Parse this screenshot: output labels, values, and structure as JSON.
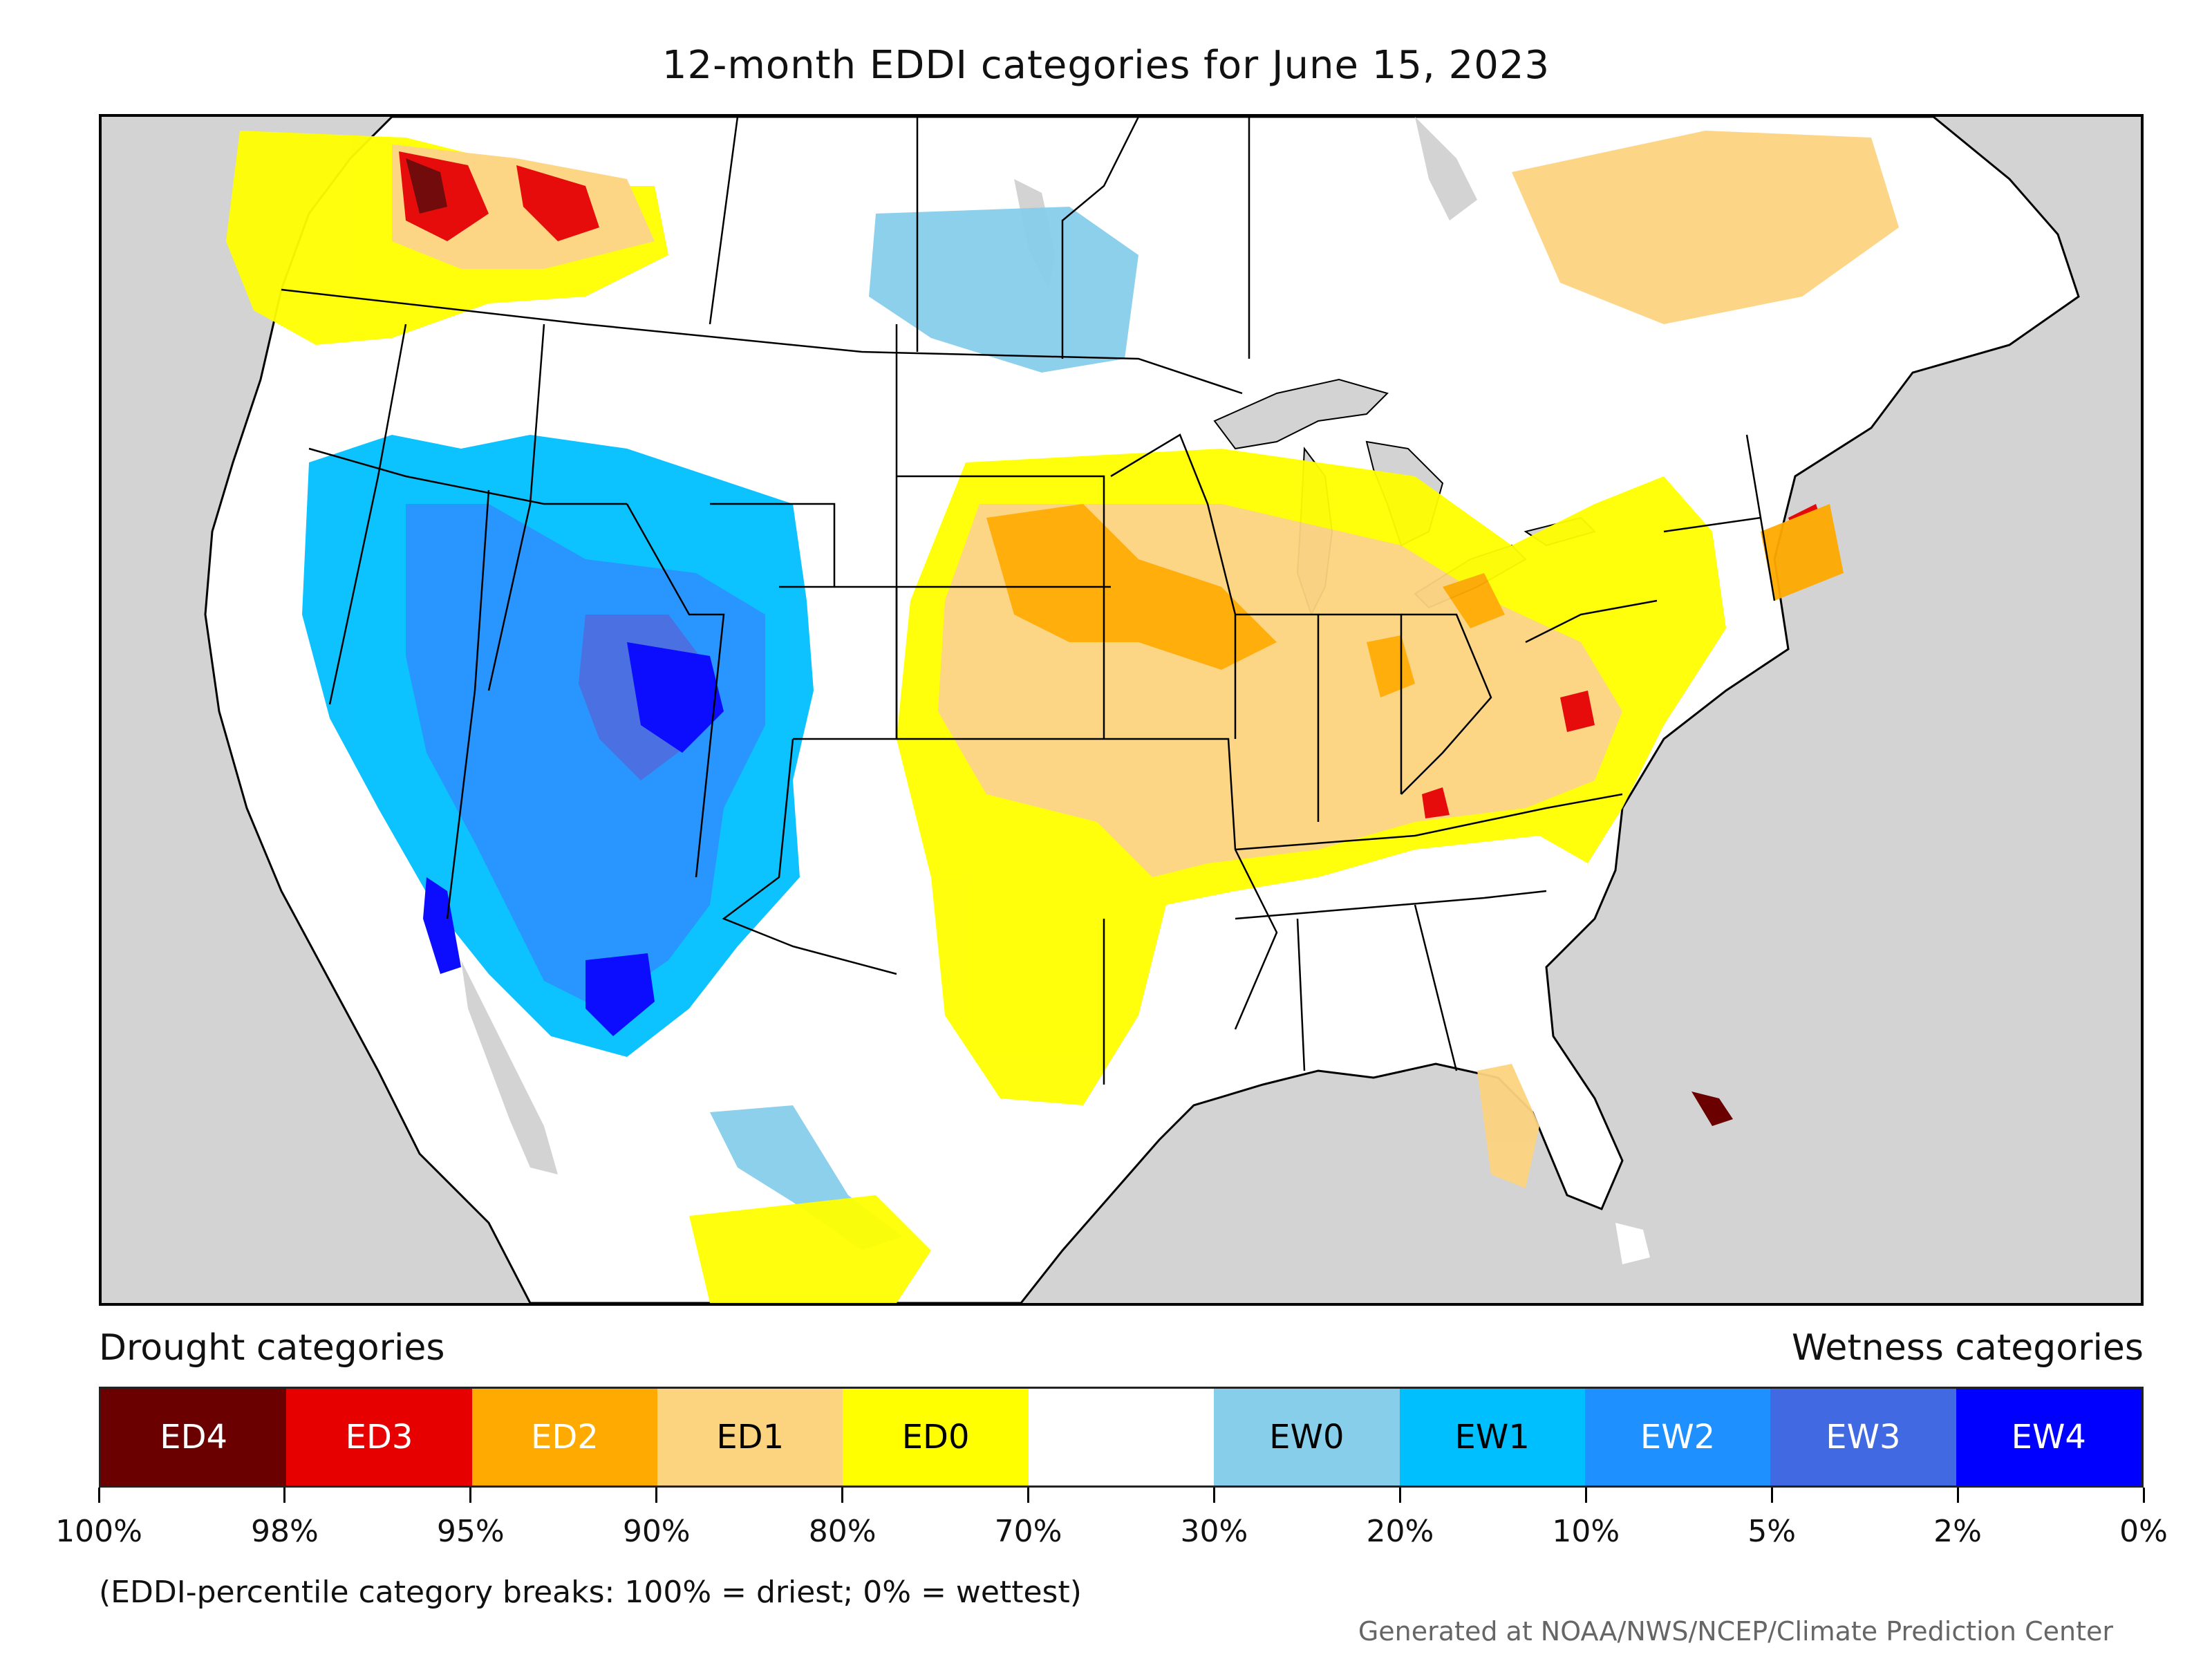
{
  "title": "12-month EDDI categories for June 15, 2023",
  "legend": {
    "drought_heading": "Drought categories",
    "wetness_heading": "Wetness categories",
    "categories": [
      {
        "label": "ED4",
        "color": "#6b0000",
        "text_color": "#ffffff"
      },
      {
        "label": "ED3",
        "color": "#e60000",
        "text_color": "#ffffff"
      },
      {
        "label": "ED2",
        "color": "#ffaa00",
        "text_color": "#ffffff"
      },
      {
        "label": "ED1",
        "color": "#fcd37f",
        "text_color": "#000000"
      },
      {
        "label": "ED0",
        "color": "#ffff00",
        "text_color": "#000000"
      },
      {
        "label": "",
        "color": "#ffffff",
        "text_color": "#000000"
      },
      {
        "label": "EW0",
        "color": "#87ceeb",
        "text_color": "#000000"
      },
      {
        "label": "EW1",
        "color": "#00bfff",
        "text_color": "#000000"
      },
      {
        "label": "EW2",
        "color": "#1e90ff",
        "text_color": "#ffffff"
      },
      {
        "label": "EW3",
        "color": "#4169e1",
        "text_color": "#ffffff"
      },
      {
        "label": "EW4",
        "color": "#0000ff",
        "text_color": "#ffffff"
      }
    ],
    "tick_labels": [
      "100%",
      "98%",
      "95%",
      "90%",
      "80%",
      "70%",
      "30%",
      "20%",
      "10%",
      "5%",
      "2%",
      "0%"
    ]
  },
  "note": "(EDDI-percentile category breaks: 100% = driest; 0% = wettest)",
  "credit": "Generated at NOAA/NWS/NCEP/Climate Prediction Center"
}
